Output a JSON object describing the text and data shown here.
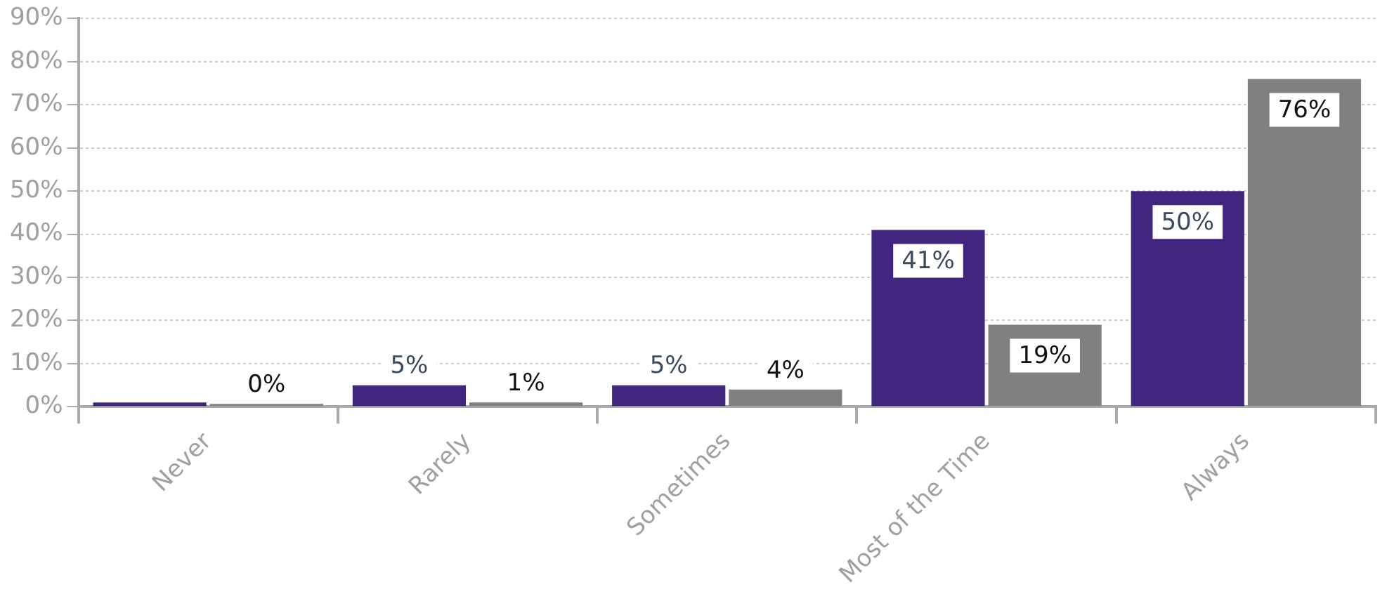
{
  "chart_data": {
    "type": "bar",
    "categories": [
      "Never",
      "Rarely",
      "Sometimes",
      "Most of the Time",
      "Always"
    ],
    "series": [
      {
        "color": "#42257f",
        "values": [
          1,
          5,
          5,
          41,
          50
        ],
        "value_labels": [
          null,
          "5%",
          "5%",
          "41%",
          "50%"
        ]
      },
      {
        "color": "#808080",
        "values": [
          0,
          1,
          4,
          19,
          76
        ],
        "value_labels": [
          "0%",
          "1%",
          "4%",
          "19%",
          "76%"
        ]
      }
    ],
    "ylim": [
      0,
      90
    ],
    "yticks": [
      {
        "value": 0,
        "label": "0%"
      },
      {
        "value": 10,
        "label": "10%"
      },
      {
        "value": 20,
        "label": "20%"
      },
      {
        "value": 30,
        "label": "30%"
      },
      {
        "value": 40,
        "label": "40%"
      },
      {
        "value": 50,
        "label": "50%"
      },
      {
        "value": 60,
        "label": "60%"
      },
      {
        "value": 70,
        "label": "70%"
      },
      {
        "value": 80,
        "label": "80%"
      },
      {
        "value": 90,
        "label": "90%"
      }
    ],
    "grid": "y",
    "legend": false
  }
}
